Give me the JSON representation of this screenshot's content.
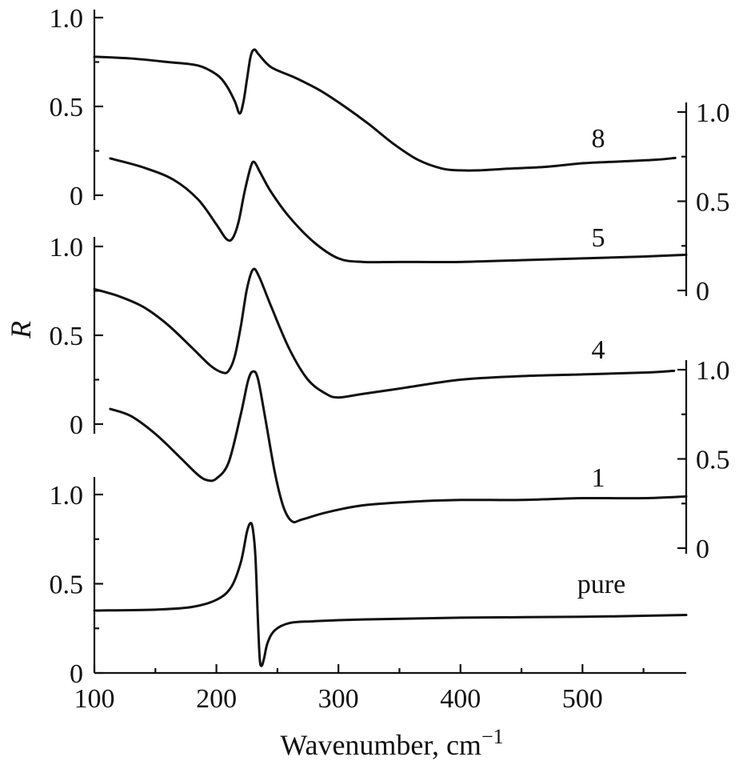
{
  "chart_data": {
    "type": "line",
    "xlabel": "Wavenumber, cm",
    "xlabel_sup": "−1",
    "ylabel": "R",
    "xlim": [
      100,
      585
    ],
    "x_ticks": [
      100,
      200,
      300,
      400,
      500
    ],
    "x_tick_labels": [
      "100",
      "200",
      "300",
      "400",
      "500"
    ],
    "panels": [
      {
        "id": "top-left",
        "side": "left",
        "ylim": [
          0,
          1.0
        ],
        "ticks": [
          0,
          0.5,
          1.0
        ],
        "tick_labels": [
          "0",
          "0.5",
          "1.0"
        ]
      },
      {
        "id": "middle-left",
        "side": "left",
        "ylim": [
          0,
          1.0
        ],
        "ticks": [
          0,
          0.5,
          1.0
        ],
        "tick_labels": [
          "0",
          "0.5",
          "1.0"
        ]
      },
      {
        "id": "bottom-left",
        "side": "left",
        "ylim": [
          0,
          1.0
        ],
        "ticks": [
          0,
          0.5,
          1.0
        ],
        "tick_labels": [
          "0",
          "0.5",
          "1.0"
        ]
      },
      {
        "id": "upper-right",
        "side": "right",
        "ylim": [
          0,
          1.0
        ],
        "ticks": [
          0,
          0.5,
          1.0
        ],
        "tick_labels": [
          "0",
          "0.5",
          "1.0"
        ]
      },
      {
        "id": "lower-right",
        "side": "right",
        "ylim": [
          0,
          1.0
        ],
        "ticks": [
          0,
          0.5,
          1.0
        ],
        "tick_labels": [
          "0",
          "0.5",
          "1.0"
        ]
      }
    ],
    "series": [
      {
        "name": "8",
        "panel": "top-left",
        "x": [
          100,
          130,
          160,
          185,
          200,
          208,
          215,
          219,
          222,
          225,
          228,
          231,
          235,
          245,
          265,
          285,
          305,
          325,
          345,
          365,
          385,
          400,
          415,
          440,
          470,
          500,
          530,
          560,
          576
        ],
        "y": [
          0.78,
          0.77,
          0.75,
          0.73,
          0.68,
          0.62,
          0.53,
          0.46,
          0.52,
          0.65,
          0.78,
          0.82,
          0.79,
          0.72,
          0.66,
          0.59,
          0.5,
          0.4,
          0.29,
          0.2,
          0.15,
          0.14,
          0.14,
          0.15,
          0.16,
          0.18,
          0.19,
          0.2,
          0.21
        ]
      },
      {
        "name": "5",
        "panel": "upper-right",
        "x": [
          113,
          140,
          165,
          185,
          200,
          208,
          213,
          218,
          223,
          228,
          231,
          236,
          245,
          260,
          280,
          300,
          320,
          350,
          400,
          450,
          500,
          550,
          585
        ],
        "y": [
          0.74,
          0.69,
          0.62,
          0.51,
          0.37,
          0.29,
          0.29,
          0.38,
          0.55,
          0.69,
          0.72,
          0.66,
          0.55,
          0.41,
          0.27,
          0.18,
          0.16,
          0.16,
          0.16,
          0.17,
          0.18,
          0.19,
          0.2
        ]
      },
      {
        "name": "4",
        "panel": "middle-left",
        "x": [
          100,
          120,
          140,
          160,
          180,
          195,
          205,
          210,
          215,
          220,
          225,
          230,
          235,
          245,
          260,
          275,
          290,
          300,
          320,
          350,
          400,
          450,
          500,
          550,
          575
        ],
        "y": [
          0.76,
          0.72,
          0.66,
          0.56,
          0.43,
          0.33,
          0.29,
          0.3,
          0.38,
          0.55,
          0.76,
          0.87,
          0.83,
          0.66,
          0.42,
          0.25,
          0.17,
          0.15,
          0.17,
          0.2,
          0.25,
          0.27,
          0.28,
          0.29,
          0.3
        ]
      },
      {
        "name": "1",
        "panel": "lower-right",
        "x": [
          113,
          130,
          150,
          170,
          185,
          193,
          200,
          210,
          220,
          226,
          230,
          234,
          240,
          248,
          255,
          262,
          270,
          290,
          320,
          360,
          400,
          450,
          500,
          550,
          585
        ],
        "y": [
          0.78,
          0.74,
          0.64,
          0.51,
          0.41,
          0.38,
          0.39,
          0.48,
          0.75,
          0.94,
          0.99,
          0.95,
          0.73,
          0.42,
          0.23,
          0.15,
          0.16,
          0.2,
          0.24,
          0.26,
          0.27,
          0.27,
          0.28,
          0.28,
          0.29
        ]
      },
      {
        "name": "pure",
        "panel": "bottom-left",
        "x": [
          100,
          150,
          180,
          200,
          212,
          220,
          225,
          228,
          230,
          232,
          234,
          235.5,
          237,
          239,
          242,
          248,
          260,
          280,
          320,
          400,
          500,
          585
        ],
        "y": [
          0.35,
          0.355,
          0.37,
          0.41,
          0.48,
          0.62,
          0.79,
          0.84,
          0.8,
          0.65,
          0.3,
          0.08,
          0.04,
          0.08,
          0.17,
          0.24,
          0.28,
          0.29,
          0.3,
          0.31,
          0.315,
          0.325
        ]
      }
    ]
  }
}
